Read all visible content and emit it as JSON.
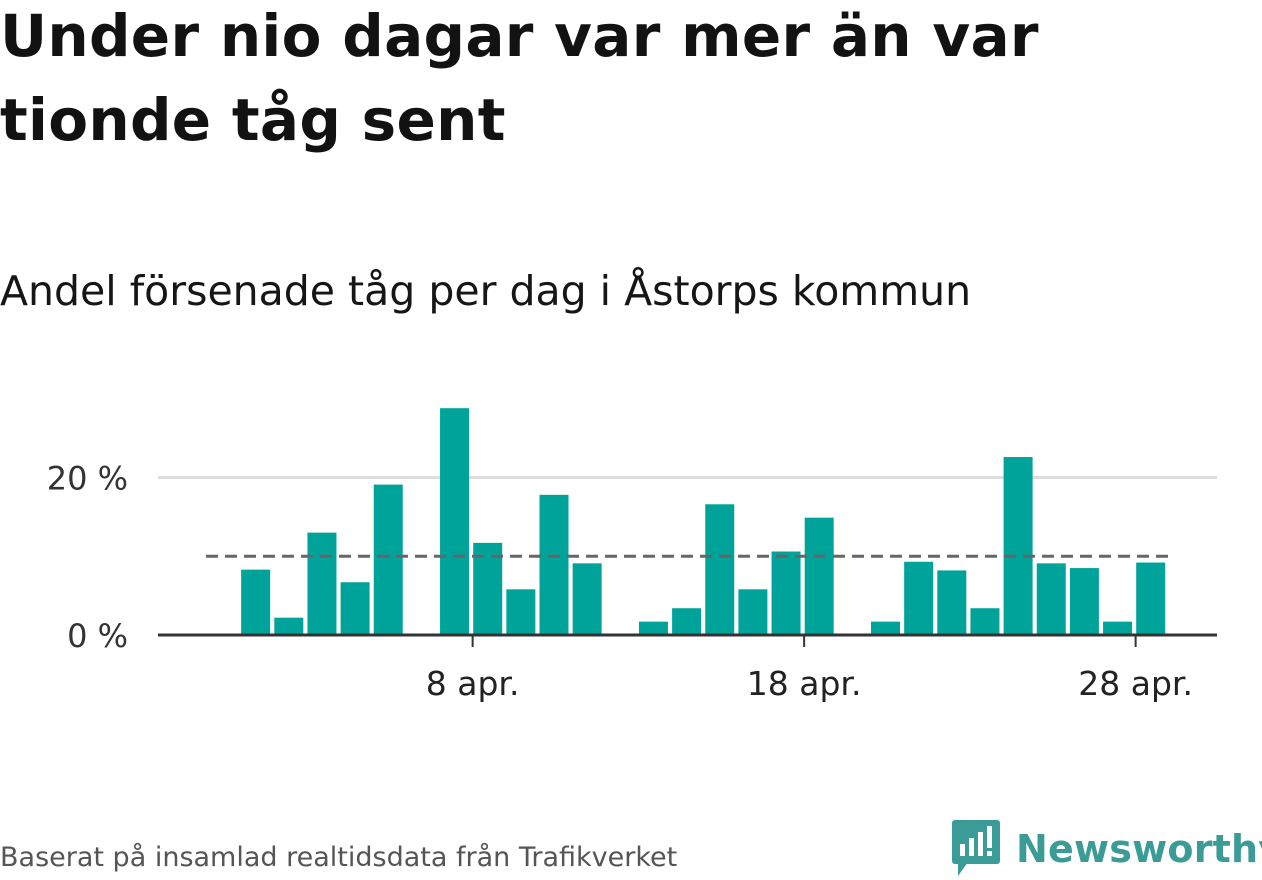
{
  "title": "Under nio dagar var mer än var tionde tåg sent",
  "subtitle": "Andel försenade tåg per dag i Åstorps kommun",
  "source": "Baserat på insamlad realtidsdata från Trafikverket",
  "logo": {
    "text": "Newsworthy",
    "icon": "newsworthy-chart-icon"
  },
  "colors": {
    "bar": "#00a39a",
    "reference_line": "#666666",
    "grid": "#dddddd",
    "axis": "#333333",
    "logo": "#3b9b96"
  },
  "chart_data": {
    "type": "bar",
    "x_unit": "day",
    "x": [
      "2024-03-31",
      "2024-04-01",
      "2024-04-02",
      "2024-04-03",
      "2024-04-04",
      "2024-04-05",
      "2024-04-06",
      "2024-04-07",
      "2024-04-08",
      "2024-04-09",
      "2024-04-10",
      "2024-04-11",
      "2024-04-12",
      "2024-04-13",
      "2024-04-14",
      "2024-04-15",
      "2024-04-16",
      "2024-04-17",
      "2024-04-18",
      "2024-04-19",
      "2024-04-20",
      "2024-04-21",
      "2024-04-22",
      "2024-04-23",
      "2024-04-24",
      "2024-04-25",
      "2024-04-26",
      "2024-04-27",
      "2024-04-28",
      "2024-04-29"
    ],
    "values": [
      0,
      8.3,
      2.2,
      13.0,
      6.7,
      19.1,
      0,
      28.8,
      11.7,
      5.8,
      17.8,
      9.1,
      0,
      1.7,
      3.4,
      16.6,
      5.8,
      10.6,
      14.9,
      0,
      1.7,
      9.3,
      8.2,
      3.4,
      22.6,
      9.1,
      8.5,
      1.7,
      9.2,
      null
    ],
    "reference_line": 10,
    "ylim": [
      0,
      30
    ],
    "yticks": [
      0,
      20
    ],
    "ytick_labels": [
      "0 %",
      "20 %"
    ],
    "xticks": [
      "2024-04-08",
      "2024-04-18",
      "2024-04-28"
    ],
    "xtick_labels": [
      "8 apr.",
      "18 apr.",
      "28 apr."
    ],
    "grid": true
  }
}
